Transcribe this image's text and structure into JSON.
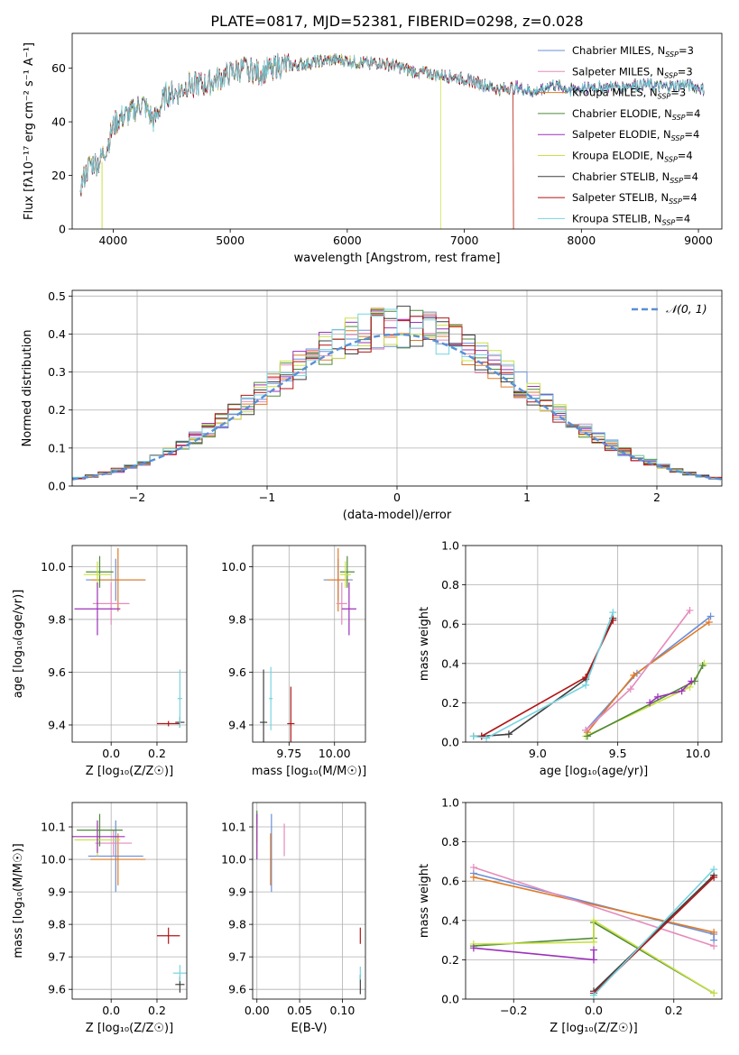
{
  "figure_title": "PLATE=0817, MJD=52381, FIBERID=0298, z=0.028",
  "series_colors": {
    "chabrier_miles": "#6a8fd6",
    "salpeter_miles": "#e58bbb",
    "kroupa_miles": "#e07a26",
    "chabrier_elodie": "#4f8a3a",
    "salpeter_elodie": "#9b30b8",
    "kroupa_elodie": "#c9e045",
    "chabrier_stelib": "#3f3f3f",
    "salpeter_stelib": "#b21515",
    "kroupa_stelib": "#77d3df"
  },
  "chart_data": [
    {
      "id": "spectrum",
      "type": "line",
      "xlabel": "wavelength [Angstrom, rest frame]",
      "ylabel": "Flux [fλ10⁻¹⁷ erg cm⁻² s⁻¹ A⁻¹]",
      "xlim": [
        3650,
        9200
      ],
      "ylim": [
        0,
        73
      ],
      "xticks": [
        4000,
        5000,
        6000,
        7000,
        8000,
        9000
      ],
      "yticks": [
        0,
        20,
        40,
        60
      ],
      "grid": false,
      "legend_position": "top-right",
      "continuum": {
        "x": [
          3720,
          3800,
          3880,
          3950,
          4000,
          4050,
          4150,
          4250,
          4350,
          4450,
          4550,
          4650,
          4800,
          4950,
          5050,
          5150,
          5250,
          5400,
          5550,
          5700,
          5850,
          5950,
          6100,
          6250,
          6400,
          6550,
          6700,
          6850,
          7000,
          7150,
          7300,
          7450,
          7600,
          7750,
          7900,
          8100,
          8300,
          8500,
          8700,
          8900,
          9050
        ],
        "y": [
          16,
          24,
          25,
          31,
          38,
          41,
          43,
          47,
          40,
          50,
          51,
          54,
          54,
          57,
          59,
          60,
          58,
          61,
          61,
          62,
          63,
          63,
          62,
          62,
          61,
          59,
          58,
          57,
          56,
          54,
          52,
          53,
          51,
          54,
          52,
          53,
          53,
          54,
          53,
          54,
          52
        ]
      },
      "series": [
        {
          "name": "Chabrier MILES, N_SSP=3",
          "color_key": "chabrier_miles"
        },
        {
          "name": "Salpeter MILES, N_SSP=3",
          "color_key": "salpeter_miles"
        },
        {
          "name": "Kroupa MILES, N_SSP=3",
          "color_key": "kroupa_miles",
          "end_x": 7420
        },
        {
          "name": "Chabrier ELODIE, N_SSP=4",
          "color_key": "chabrier_elodie"
        },
        {
          "name": "Salpeter ELODIE, N_SSP=4",
          "color_key": "salpeter_elodie"
        },
        {
          "name": "Kroupa ELODIE, N_SSP=4",
          "color_key": "kroupa_elodie",
          "end_x": 6800
        },
        {
          "name": "Chabrier STELIB, N_SSP=4",
          "color_key": "chabrier_stelib"
        },
        {
          "name": "Salpeter STELIB, N_SSP=4",
          "color_key": "salpeter_stelib",
          "end_x": 7420
        },
        {
          "name": "Kroupa STELIB, N_SSP=4",
          "color_key": "kroupa_stelib"
        }
      ]
    },
    {
      "id": "residuals",
      "type": "bar",
      "xlabel": "(data-model)/error",
      "ylabel": "Normed distribution",
      "xlim": [
        -2.5,
        2.5
      ],
      "ylim": [
        0,
        0.515
      ],
      "xticks": [
        -2,
        -1,
        0,
        1,
        2
      ],
      "yticks": [
        0.0,
        0.1,
        0.2,
        0.3,
        0.4,
        0.5
      ],
      "grid": true,
      "legend_position": "top-right",
      "legend_label": "𝒩(0, 1)",
      "bin_width": 0.1,
      "bin_start": -2.5
    },
    {
      "id": "age-vs-Z",
      "type": "scatter",
      "xlabel": "Z [log₁₀(Z/Z☉)]",
      "ylabel": "age  [log₁₀(age/yr)]",
      "xlim": [
        -0.17,
        0.33
      ],
      "ylim": [
        9.335,
        10.08
      ],
      "xticks": [
        0.0,
        0.2
      ],
      "yticks": [
        9.4,
        9.6,
        9.8,
        10.0
      ],
      "grid": true,
      "points": [
        {
          "c": "chabrier_miles",
          "x": 0.02,
          "xe": 0.13,
          "y": 9.95,
          "ye": 0.08
        },
        {
          "c": "kroupa_miles",
          "x": 0.03,
          "xe": 0.12,
          "y": 9.95,
          "ye": 0.12
        },
        {
          "c": "salpeter_miles",
          "x": 0.0,
          "xe": 0.08,
          "y": 9.86,
          "ye": 0.08
        },
        {
          "c": "chabrier_elodie",
          "x": -0.05,
          "xe": 0.06,
          "y": 9.98,
          "ye": 0.06
        },
        {
          "c": "kroupa_elodie",
          "x": -0.06,
          "xe": 0.06,
          "y": 9.97,
          "ye": 0.05
        },
        {
          "c": "salpeter_elodie",
          "x": -0.06,
          "xe": 0.1,
          "y": 9.84,
          "ye": 0.1
        },
        {
          "c": "chabrier_stelib",
          "x": 0.3,
          "xe": 0.02,
          "y": 9.41,
          "ye": 0.02
        },
        {
          "c": "salpeter_stelib",
          "x": 0.25,
          "xe": 0.05,
          "y": 9.405,
          "ye": 0.01
        },
        {
          "c": "kroupa_stelib",
          "x": 0.3,
          "xe": 0.01,
          "y": 9.5,
          "ye": 0.11
        }
      ]
    },
    {
      "id": "age-vs-mass",
      "type": "scatter",
      "xlabel": "mass [log₁₀(M/M☉)]",
      "ylabel": "",
      "xlim": [
        9.55,
        10.17
      ],
      "ylim": [
        9.335,
        10.08
      ],
      "xticks": [
        9.75,
        10.0
      ],
      "yticks": [
        9.4,
        9.6,
        9.8,
        10.0
      ],
      "grid": true,
      "points": [
        {
          "c": "chabrier_miles",
          "x": 10.02,
          "xe": 0.08,
          "y": 9.95,
          "ye": 0.08
        },
        {
          "c": "kroupa_miles",
          "x": 10.02,
          "xe": 0.06,
          "y": 9.95,
          "ye": 0.12
        },
        {
          "c": "salpeter_miles",
          "x": 10.04,
          "xe": 0.03,
          "y": 9.86,
          "ye": 0.08
        },
        {
          "c": "chabrier_elodie",
          "x": 10.07,
          "xe": 0.04,
          "y": 9.98,
          "ye": 0.06
        },
        {
          "c": "kroupa_elodie",
          "x": 10.06,
          "xe": 0.03,
          "y": 9.97,
          "ye": 0.05
        },
        {
          "c": "salpeter_elodie",
          "x": 10.08,
          "xe": 0.04,
          "y": 9.84,
          "ye": 0.1
        },
        {
          "c": "chabrier_stelib",
          "x": 9.61,
          "xe": 0.02,
          "y": 9.41,
          "ye": 0.2
        },
        {
          "c": "salpeter_stelib",
          "x": 9.76,
          "xe": 0.02,
          "y": 9.405,
          "ye": 0.14
        },
        {
          "c": "kroupa_stelib",
          "x": 9.65,
          "xe": 0.01,
          "y": 9.5,
          "ye": 0.12
        }
      ]
    },
    {
      "id": "weight-vs-age",
      "type": "line",
      "xlabel": "age  [log₁₀(age/yr)]",
      "ylabel": "mass weight",
      "xlim": [
        8.55,
        10.15
      ],
      "ylim": [
        0,
        1.0
      ],
      "xticks": [
        9.0,
        9.5,
        10.0
      ],
      "yticks": [
        0.0,
        0.2,
        0.4,
        0.6,
        0.8,
        1.0
      ],
      "grid": true,
      "series": [
        {
          "c": "chabrier_stelib",
          "x": [
            8.6,
            8.65,
            8.82,
            9.3,
            9.47
          ],
          "y": [
            0.03,
            0.03,
            0.04,
            0.32,
            0.63
          ]
        },
        {
          "c": "salpeter_stelib",
          "x": [
            8.65,
            9.3,
            9.47
          ],
          "y": [
            0.03,
            0.33,
            0.62
          ]
        },
        {
          "c": "kroupa_stelib",
          "x": [
            8.6,
            8.68,
            9.3,
            9.47
          ],
          "y": [
            0.03,
            0.02,
            0.29,
            0.66
          ]
        },
        {
          "c": "chabrier_miles",
          "x": [
            9.3,
            9.62,
            10.08
          ],
          "y": [
            0.06,
            0.35,
            0.64
          ]
        },
        {
          "c": "kroupa_miles",
          "x": [
            9.31,
            9.6,
            10.07
          ],
          "y": [
            0.05,
            0.34,
            0.61
          ]
        },
        {
          "c": "salpeter_miles",
          "x": [
            9.3,
            9.58,
            9.95
          ],
          "y": [
            0.06,
            0.27,
            0.67
          ]
        },
        {
          "c": "kroupa_elodie",
          "x": [
            9.3,
            9.95,
            10.04
          ],
          "y": [
            0.03,
            0.28,
            0.4
          ]
        },
        {
          "c": "chabrier_elodie",
          "x": [
            9.31,
            9.98,
            10.03
          ],
          "y": [
            0.03,
            0.31,
            0.39
          ]
        },
        {
          "c": "salpeter_elodie",
          "x": [
            9.7,
            9.75,
            9.9,
            9.96
          ],
          "y": [
            0.2,
            0.23,
            0.26,
            0.31
          ]
        }
      ]
    },
    {
      "id": "mass-vs-Z",
      "type": "scatter",
      "xlabel": "Z [log₁₀(Z/Z☉)]",
      "ylabel": "mass [log₁₀(M/M☉)]",
      "xlim": [
        -0.17,
        0.33
      ],
      "ylim": [
        9.57,
        10.175
      ],
      "xticks": [
        0.0,
        0.2
      ],
      "yticks": [
        9.6,
        9.7,
        9.8,
        9.9,
        10.0,
        10.1
      ],
      "grid": true,
      "points": [
        {
          "c": "chabrier_miles",
          "x": 0.02,
          "xe": 0.12,
          "y": 10.01,
          "ye": 0.11
        },
        {
          "c": "kroupa_miles",
          "x": 0.03,
          "xe": 0.12,
          "y": 10.0,
          "ye": 0.08
        },
        {
          "c": "salpeter_miles",
          "x": 0.01,
          "xe": 0.08,
          "y": 10.05,
          "ye": 0.04
        },
        {
          "c": "chabrier_elodie",
          "x": -0.05,
          "xe": 0.1,
          "y": 10.09,
          "ye": 0.05
        },
        {
          "c": "kroupa_elodie",
          "x": -0.06,
          "xe": 0.1,
          "y": 10.06,
          "ye": 0.05
        },
        {
          "c": "salpeter_elodie",
          "x": -0.06,
          "xe": 0.12,
          "y": 10.07,
          "ye": 0.05
        },
        {
          "c": "chabrier_stelib",
          "x": 0.3,
          "xe": 0.02,
          "y": 9.615,
          "ye": 0.025
        },
        {
          "c": "salpeter_stelib",
          "x": 0.25,
          "xe": 0.05,
          "y": 9.765,
          "ye": 0.025
        },
        {
          "c": "kroupa_stelib",
          "x": 0.3,
          "xe": 0.03,
          "y": 9.65,
          "ye": 0.025
        }
      ]
    },
    {
      "id": "mass-vs-ebv",
      "type": "scatter",
      "xlabel": "E(B-V)",
      "ylabel": "",
      "xlim": [
        -0.005,
        0.127
      ],
      "ylim": [
        9.57,
        10.175
      ],
      "xticks": [
        0.0,
        0.05,
        0.1
      ],
      "yticks": [
        9.6,
        9.7,
        9.8,
        9.9,
        10.0,
        10.1
      ],
      "grid": true,
      "points": [
        {
          "c": "chabrier_miles",
          "x": 0.017,
          "xe": 0,
          "y": 10.02,
          "ye": 0.12
        },
        {
          "c": "kroupa_miles",
          "x": 0.016,
          "xe": 0,
          "y": 10.0,
          "ye": 0.08
        },
        {
          "c": "salpeter_miles",
          "x": 0.032,
          "xe": 0,
          "y": 10.06,
          "ye": 0.05
        },
        {
          "c": "chabrier_elodie",
          "x": 0.0,
          "xe": 0,
          "y": 10.1,
          "ye": 0.05
        },
        {
          "c": "kroupa_elodie",
          "x": 0.0,
          "xe": 0,
          "y": 10.06,
          "ye": 0.05
        },
        {
          "c": "salpeter_elodie",
          "x": 0.0,
          "xe": 0,
          "y": 10.07,
          "ye": 0.07
        },
        {
          "c": "chabrier_stelib",
          "x": 0.121,
          "xe": 0,
          "y": 9.615,
          "ye": 0.03
        },
        {
          "c": "salpeter_stelib",
          "x": 0.121,
          "xe": 0,
          "y": 9.765,
          "ye": 0.025
        },
        {
          "c": "kroupa_stelib",
          "x": 0.121,
          "xe": 0,
          "y": 9.65,
          "ye": 0.02
        }
      ]
    },
    {
      "id": "weight-vs-Z",
      "type": "line",
      "xlabel": "Z [log₁₀(Z/Z☉)]",
      "ylabel": "mass weight",
      "xlim": [
        -0.32,
        0.32
      ],
      "ylim": [
        0,
        1.0
      ],
      "xticks": [
        -0.2,
        0.0,
        0.2
      ],
      "yticks": [
        0.0,
        0.2,
        0.4,
        0.6,
        0.8,
        1.0
      ],
      "grid": true,
      "series": [
        {
          "c": "chabrier_miles",
          "x": [
            -0.3,
            0.3,
            0.3
          ],
          "y": [
            0.64,
            0.33,
            0.3
          ]
        },
        {
          "c": "kroupa_miles",
          "x": [
            -0.3,
            0.3
          ],
          "y": [
            0.62,
            0.34
          ]
        },
        {
          "c": "salpeter_miles",
          "x": [
            -0.3,
            0.3
          ],
          "y": [
            0.67,
            0.27
          ]
        },
        {
          "c": "chabrier_elodie",
          "x": [
            -0.3,
            0.0,
            0.0,
            0.3
          ],
          "y": [
            0.27,
            0.31,
            0.39,
            0.03
          ]
        },
        {
          "c": "kroupa_elodie",
          "x": [
            -0.3,
            0.0,
            0.0,
            0.3
          ],
          "y": [
            0.28,
            0.29,
            0.4,
            0.03
          ]
        },
        {
          "c": "salpeter_elodie",
          "x": [
            -0.3,
            0.0,
            0.0
          ],
          "y": [
            0.26,
            0.2,
            0.25
          ]
        },
        {
          "c": "chabrier_stelib",
          "x": [
            0.0,
            0.3
          ],
          "y": [
            0.04,
            0.63
          ]
        },
        {
          "c": "salpeter_stelib",
          "x": [
            0.0,
            0.3
          ],
          "y": [
            0.03,
            0.62
          ]
        },
        {
          "c": "kroupa_stelib",
          "x": [
            0.0,
            0.3
          ],
          "y": [
            0.02,
            0.66
          ]
        }
      ]
    }
  ]
}
